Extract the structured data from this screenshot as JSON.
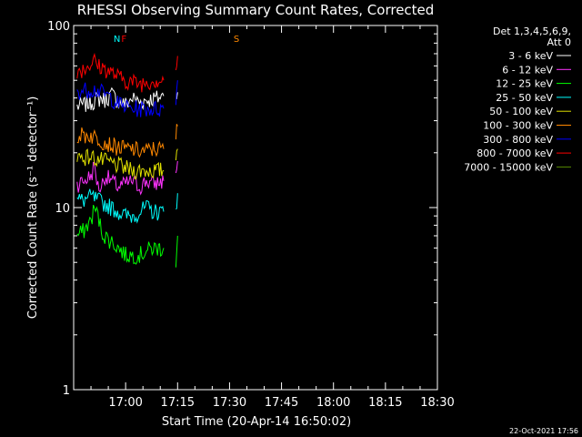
{
  "chart_data": {
    "type": "line",
    "title": "RHESSI Observing Summary Count Rates, Corrected",
    "xlabel": "Start Time (20-Apr-14 16:50:02)",
    "ylabel": "Corrected Count Rate (s⁻¹ detector⁻¹)",
    "y_scale": "log",
    "ylim": [
      1,
      100
    ],
    "xlim_minutes": [
      -5,
      100
    ],
    "x_ticks": [
      {
        "t": 10,
        "label": "17:00"
      },
      {
        "t": 25,
        "label": "17:15"
      },
      {
        "t": 40,
        "label": "17:30"
      },
      {
        "t": 55,
        "label": "17:45"
      },
      {
        "t": 70,
        "label": "18:00"
      },
      {
        "t": 85,
        "label": "18:15"
      },
      {
        "t": 100,
        "label": "18:30"
      }
    ],
    "y_ticks": [
      {
        "v": 1,
        "label": "1"
      },
      {
        "v": 10,
        "label": "10"
      },
      {
        "v": 100,
        "label": "100"
      }
    ],
    "legend_header": [
      "Det 1,3,4,5,6,9,",
      "Att 0"
    ],
    "legend_position": "right",
    "series": [
      {
        "name": "3 - 6 keV",
        "color": "#ffffff",
        "segments": [
          [
            [
              -4,
              36
            ],
            [
              -1.5,
              37
            ],
            [
              0,
              38
            ],
            [
              3,
              40
            ],
            [
              4,
              39
            ],
            [
              6,
              42
            ],
            [
              8,
              38
            ],
            [
              10,
              37
            ],
            [
              12,
              40
            ],
            [
              14,
              38
            ],
            [
              16,
              39
            ],
            [
              19,
              40
            ],
            [
              21,
              41
            ]
          ],
          [
            [
              24.5,
              42
            ],
            [
              25,
              43
            ]
          ]
        ]
      },
      {
        "name": "6 - 12 keV",
        "color": "#ff33ff",
        "segments": [
          [
            [
              -4,
              13.5
            ],
            [
              -2,
              14
            ],
            [
              0,
              15
            ],
            [
              1,
              17
            ],
            [
              2,
              13
            ],
            [
              3,
              13
            ],
            [
              4,
              15
            ],
            [
              6,
              14
            ],
            [
              8,
              13
            ],
            [
              10,
              13.5
            ],
            [
              12,
              14
            ],
            [
              14,
              13
            ],
            [
              16,
              14
            ],
            [
              18,
              13.5
            ],
            [
              21,
              14
            ]
          ],
          [
            [
              24.5,
              16
            ],
            [
              25,
              18
            ]
          ]
        ]
      },
      {
        "name": "12 - 25 keV",
        "color": "#00ff00",
        "segments": [
          [
            [
              -4,
              7
            ],
            [
              -2,
              7.5
            ],
            [
              0,
              8.5
            ],
            [
              1,
              10
            ],
            [
              2,
              9
            ],
            [
              3,
              7.5
            ],
            [
              4,
              7
            ],
            [
              6,
              6.5
            ],
            [
              8,
              6
            ],
            [
              10,
              5.5
            ],
            [
              12,
              5.5
            ],
            [
              14,
              5.5
            ],
            [
              16,
              5.8
            ],
            [
              18,
              6
            ],
            [
              21,
              6
            ]
          ],
          [
            [
              24.5,
              5
            ],
            [
              25,
              7
            ]
          ]
        ]
      },
      {
        "name": "25 - 50 keV",
        "color": "#00ffff",
        "segments": [
          [
            [
              -4,
              11
            ],
            [
              -2,
              11
            ],
            [
              0,
              11.5
            ],
            [
              2,
              11
            ],
            [
              4,
              10.5
            ],
            [
              6,
              10
            ],
            [
              8,
              9.5
            ],
            [
              10,
              9
            ],
            [
              12,
              9
            ],
            [
              14,
              9.5
            ],
            [
              16,
              10
            ],
            [
              18,
              9.5
            ],
            [
              21,
              9.5
            ]
          ],
          [
            [
              24.5,
              10
            ],
            [
              25,
              12
            ]
          ]
        ]
      },
      {
        "name": "50 - 100 keV",
        "color": "#e0e000",
        "segments": [
          [
            [
              -4,
              19
            ],
            [
              -2,
              19
            ],
            [
              0,
              19
            ],
            [
              2,
              18.5
            ],
            [
              4,
              18
            ],
            [
              6,
              17.5
            ],
            [
              8,
              17
            ],
            [
              10,
              16.5
            ],
            [
              12,
              16
            ],
            [
              14,
              16
            ],
            [
              16,
              16
            ],
            [
              18,
              16
            ],
            [
              21,
              16
            ]
          ],
          [
            [
              24.5,
              19
            ],
            [
              25,
              21
            ]
          ]
        ]
      },
      {
        "name": "100 - 300 keV",
        "color": "#ff8800",
        "segments": [
          [
            [
              -4,
              25
            ],
            [
              -2,
              25
            ],
            [
              0,
              25
            ],
            [
              2,
              24
            ],
            [
              4,
              23
            ],
            [
              6,
              22
            ],
            [
              8,
              21.5
            ],
            [
              10,
              21
            ],
            [
              12,
              21
            ],
            [
              14,
              20.5
            ],
            [
              16,
              20.5
            ],
            [
              18,
              21
            ],
            [
              21,
              21
            ]
          ],
          [
            [
              24.5,
              25
            ],
            [
              25,
              28
            ]
          ]
        ]
      },
      {
        "name": "300 - 800 keV",
        "color": "#0000ff",
        "segments": [
          [
            [
              -4,
              44
            ],
            [
              -2,
              44
            ],
            [
              0,
              45
            ],
            [
              2,
              44
            ],
            [
              4,
              42
            ],
            [
              6,
              40
            ],
            [
              8,
              37
            ],
            [
              10,
              36
            ],
            [
              12,
              35
            ],
            [
              14,
              35
            ],
            [
              16,
              35
            ],
            [
              18,
              35
            ],
            [
              21,
              35
            ]
          ],
          [
            [
              24.5,
              38
            ],
            [
              25,
              50
            ]
          ]
        ]
      },
      {
        "name": "800 - 7000 keV",
        "color": "#ff0000",
        "segments": [
          [
            [
              -4,
              57
            ],
            [
              -2,
              58
            ],
            [
              0,
              62
            ],
            [
              1,
              64
            ],
            [
              2,
              60
            ],
            [
              4,
              58
            ],
            [
              6,
              55
            ],
            [
              8,
              52
            ],
            [
              10,
              50
            ],
            [
              12,
              49
            ],
            [
              14,
              48
            ],
            [
              16,
              49
            ],
            [
              18,
              50
            ],
            [
              21,
              50
            ]
          ],
          [
            [
              24.5,
              58
            ],
            [
              25,
              68
            ]
          ]
        ]
      },
      {
        "name": "7000 - 15000 keV",
        "color": "#558800",
        "segments": []
      }
    ],
    "annotations": [
      {
        "label": "N",
        "t": 7.5,
        "color": "#00ffff"
      },
      {
        "label": "F",
        "t": 9.5,
        "color": "#ff0000"
      },
      {
        "label": "S",
        "t": 42,
        "color": "#ff8800"
      }
    ]
  },
  "footer": {
    "timestamp": "22-Oct-2021 17:56"
  }
}
